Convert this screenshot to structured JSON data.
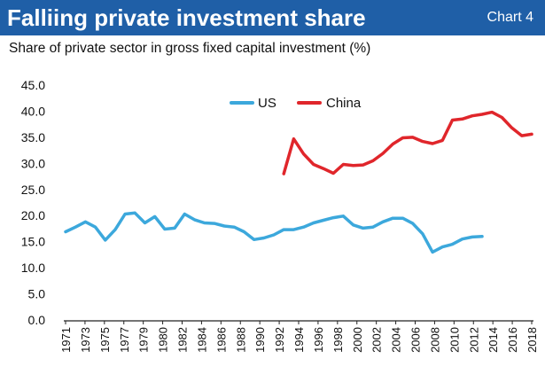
{
  "header": {
    "title": "Falliing private investment share",
    "chart_label": "Chart 4",
    "subtitle": "Share of private sector in gross fixed capital investment (%)"
  },
  "colors": {
    "header_bg": "#1f5fa7",
    "us": "#3ca8dc",
    "china": "#e0262b"
  },
  "chart_data": {
    "type": "line",
    "title": "Falliing private investment share",
    "subtitle": "Share of private sector in gross fixed capital investment (%)",
    "xlabel": "",
    "ylabel": "",
    "ylim": [
      0,
      45
    ],
    "xlim": [
      1971,
      2018
    ],
    "yticks": [
      "0.0",
      "5.0",
      "10.0",
      "15.0",
      "20.0",
      "25.0",
      "30.0",
      "35.0",
      "40.0",
      "45.0"
    ],
    "xticks": [
      "1971",
      "1973",
      "1975",
      "1977",
      "1979",
      "1980",
      "1982",
      "1984",
      "1986",
      "1988",
      "1990",
      "1992",
      "1994",
      "1996",
      "1998",
      "2000",
      "2002",
      "2004",
      "2006",
      "2008",
      "2010",
      "2012",
      "2014",
      "2016",
      "2018"
    ],
    "grid": false,
    "legend": "top-center",
    "series": [
      {
        "name": "US",
        "color": "#3ca8dc",
        "x": [
          1971,
          1972,
          1973,
          1974,
          1975,
          1976,
          1977,
          1978,
          1979,
          1980,
          1981,
          1982,
          1983,
          1984,
          1985,
          1986,
          1987,
          1988,
          1989,
          1990,
          1991,
          1992,
          1993,
          1994,
          1995,
          1996,
          1997,
          1998,
          1999,
          2000,
          2001,
          2002,
          2003,
          2004,
          2005,
          2006,
          2007,
          2008,
          2009,
          2010,
          2011,
          2012,
          2013
        ],
        "values": [
          16.9,
          17.8,
          18.8,
          17.8,
          15.3,
          17.3,
          20.3,
          20.5,
          18.6,
          19.8,
          17.4,
          17.6,
          20.3,
          19.2,
          18.6,
          18.5,
          18.0,
          17.8,
          16.9,
          15.4,
          15.7,
          16.3,
          17.3,
          17.3,
          17.8,
          18.6,
          19.1,
          19.6,
          19.9,
          18.2,
          17.6,
          17.8,
          18.8,
          19.5,
          19.5,
          18.5,
          16.5,
          13.0,
          14.0,
          14.5,
          15.5,
          15.9,
          16.0
        ],
        "x_end": 2013
      },
      {
        "name": "China",
        "color": "#e0262b",
        "x": [
          1993,
          1994,
          1995,
          1996,
          1997,
          1998,
          1999,
          2000,
          2001,
          2002,
          2003,
          2004,
          2005,
          2006,
          2007,
          2008,
          2009,
          2010,
          2011,
          2012,
          2013,
          2014,
          2015,
          2016,
          2017,
          2018
        ],
        "values": [
          28.0,
          34.7,
          31.8,
          29.8,
          29.0,
          28.1,
          29.8,
          29.6,
          29.7,
          30.5,
          31.9,
          33.7,
          34.9,
          35.0,
          34.2,
          33.8,
          34.4,
          38.3,
          38.5,
          39.1,
          39.4,
          39.8,
          38.8,
          36.8,
          35.3,
          35.6
        ]
      }
    ]
  }
}
